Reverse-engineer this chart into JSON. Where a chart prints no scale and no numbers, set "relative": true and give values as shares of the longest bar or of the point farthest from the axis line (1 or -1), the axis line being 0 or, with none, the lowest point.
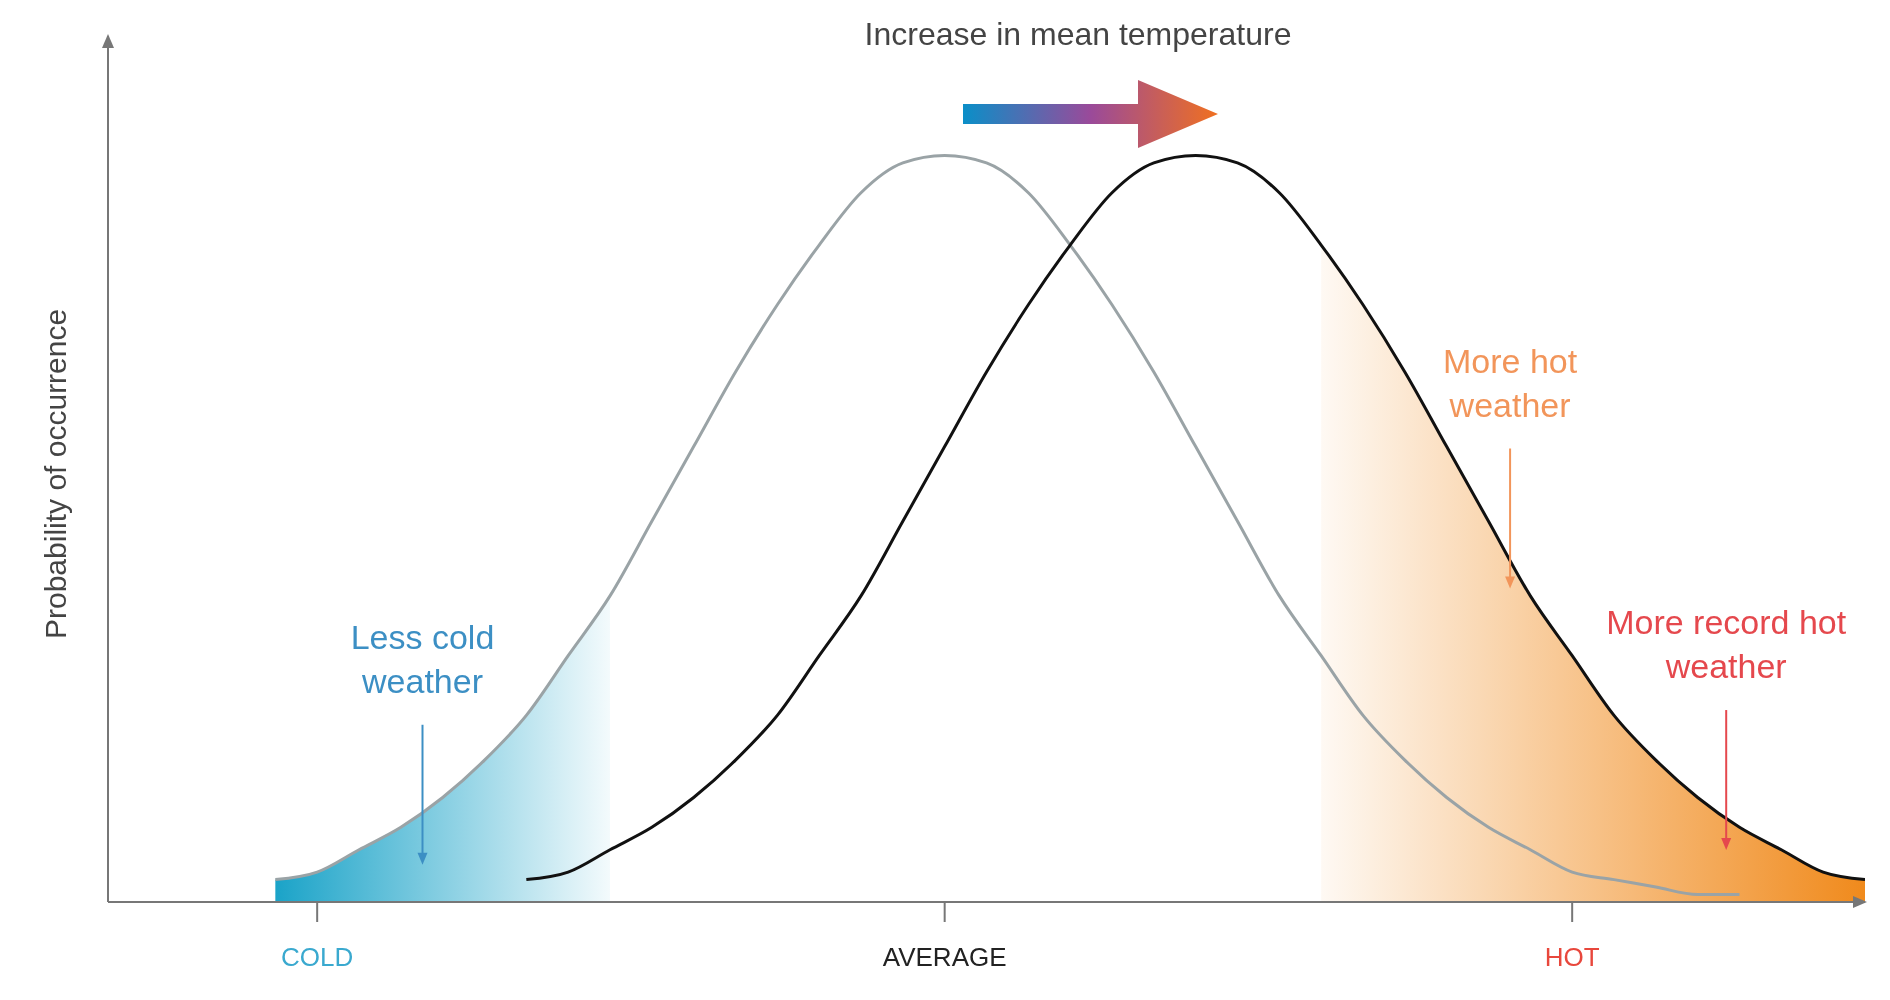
{
  "chart_data": {
    "type": "line",
    "relative": true,
    "ylabel": "Probability of occurrence",
    "categories": [
      null,
      null,
      null,
      null,
      null,
      "COLD",
      null,
      null,
      null,
      null,
      null,
      null,
      null,
      null,
      null,
      null,
      null,
      null,
      null,
      null,
      "AVERAGE",
      null,
      null,
      null,
      null,
      null,
      null,
      null,
      null,
      null,
      null,
      null,
      null,
      null,
      null,
      "HOT",
      null,
      null,
      null,
      null,
      null,
      null,
      null
    ],
    "grid": false,
    "marker": "none",
    "line_style": "solid",
    "series": [
      {
        "type": "area",
        "color": "#1aa3c8",
        "values": [
          null,
          null,
          null,
          null,
          0.03,
          0.04,
          0.07,
          0.1,
          0.14,
          0.19,
          0.25,
          0.33,
          0.41,
          null,
          null,
          null,
          null,
          null,
          null,
          null,
          null,
          null,
          null,
          null,
          null,
          null,
          null,
          null,
          null,
          null,
          null,
          null,
          null,
          null,
          null,
          null,
          null,
          null,
          null,
          null,
          null,
          null,
          null
        ]
      },
      {
        "type": "area",
        "color": "#f08a1c",
        "values": [
          null,
          null,
          null,
          null,
          null,
          null,
          null,
          null,
          null,
          null,
          null,
          null,
          null,
          null,
          null,
          null,
          null,
          null,
          null,
          null,
          null,
          null,
          null,
          null,
          null,
          null,
          null,
          null,
          null,
          0.88,
          0.8,
          0.71,
          0.61,
          0.51,
          0.41,
          0.33,
          0.25,
          0.19,
          0.14,
          0.1,
          0.07,
          0.04,
          0.03
        ]
      },
      {
        "color": "#9aa3a6",
        "values": [
          null,
          null,
          null,
          null,
          0.03,
          0.04,
          0.07,
          0.1,
          0.14,
          0.19,
          0.25,
          0.33,
          0.41,
          0.51,
          0.61,
          0.71,
          0.8,
          0.88,
          0.95,
          0.99,
          1,
          0.99,
          0.95,
          0.88,
          0.8,
          0.71,
          0.61,
          0.51,
          0.41,
          0.33,
          0.25,
          0.19,
          0.14,
          0.1,
          0.07,
          0.04,
          0.03,
          0.02,
          0.01,
          0.01,
          null,
          null,
          null
        ]
      },
      {
        "color": "#111111",
        "values": [
          null,
          null,
          null,
          null,
          null,
          null,
          null,
          null,
          null,
          null,
          0.03,
          0.04,
          0.07,
          0.1,
          0.14,
          0.19,
          0.25,
          0.33,
          0.41,
          0.51,
          0.61,
          0.71,
          0.8,
          0.88,
          0.95,
          0.99,
          1,
          0.99,
          0.95,
          0.88,
          0.8,
          0.71,
          0.61,
          0.51,
          0.41,
          0.33,
          0.25,
          0.19,
          0.14,
          0.1,
          0.07,
          0.04,
          0.03
        ]
      }
    ],
    "annotations": [
      "Increase in mean temperature",
      "Less cold weather",
      "More hot weather",
      "More record hot weather"
    ]
  }
}
